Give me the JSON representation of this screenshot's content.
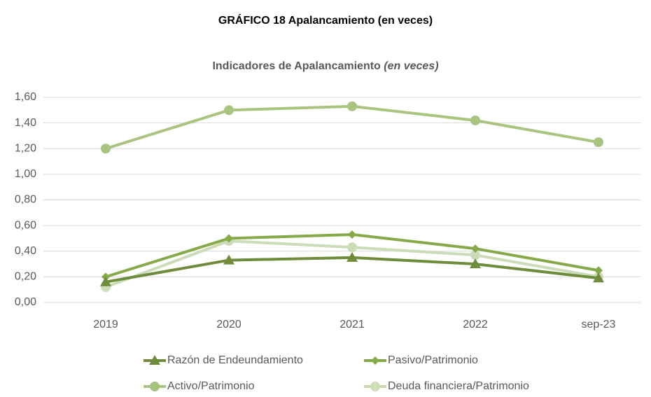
{
  "chart_data": {
    "type": "line",
    "title": "GRÁFICO  18  Apalancamiento (en veces)",
    "subtitle": "Indicadores de Apalancamiento",
    "subtitle_note": "(en veces)",
    "categories": [
      "2019",
      "2020",
      "2021",
      "2022",
      "sep-23"
    ],
    "series": [
      {
        "name": "Razón de Endeundamiento",
        "color": "#6e8c3c",
        "marker": "triangle",
        "values": [
          0.16,
          0.33,
          0.35,
          0.3,
          0.19
        ]
      },
      {
        "name": "Pasivo/Patrimonio",
        "color": "#86a94a",
        "marker": "diamond",
        "values": [
          0.2,
          0.5,
          0.53,
          0.42,
          0.25
        ]
      },
      {
        "name": "Activo/Patrimonio",
        "color": "#a9c47f",
        "marker": "circle",
        "values": [
          1.2,
          1.5,
          1.53,
          1.42,
          1.25
        ]
      },
      {
        "name": "Deuda financiera/Patrimonio",
        "color": "#cddcb8",
        "marker": "circle",
        "values": [
          0.12,
          0.48,
          0.43,
          0.37,
          0.2
        ]
      }
    ],
    "ylim": [
      0,
      1.6
    ],
    "yticks": [
      {
        "value": 0,
        "label": "0,00"
      },
      {
        "value": 0.2,
        "label": "0,20"
      },
      {
        "value": 0.4,
        "label": "0,40"
      },
      {
        "value": 0.6,
        "label": "0,60"
      },
      {
        "value": 0.8,
        "label": "0,80"
      },
      {
        "value": 1.0,
        "label": "1,00"
      },
      {
        "value": 1.2,
        "label": "1,20"
      },
      {
        "value": 1.4,
        "label": "1,40"
      },
      {
        "value": 1.6,
        "label": "1,60"
      }
    ],
    "grid": true,
    "legend": "bottom"
  }
}
